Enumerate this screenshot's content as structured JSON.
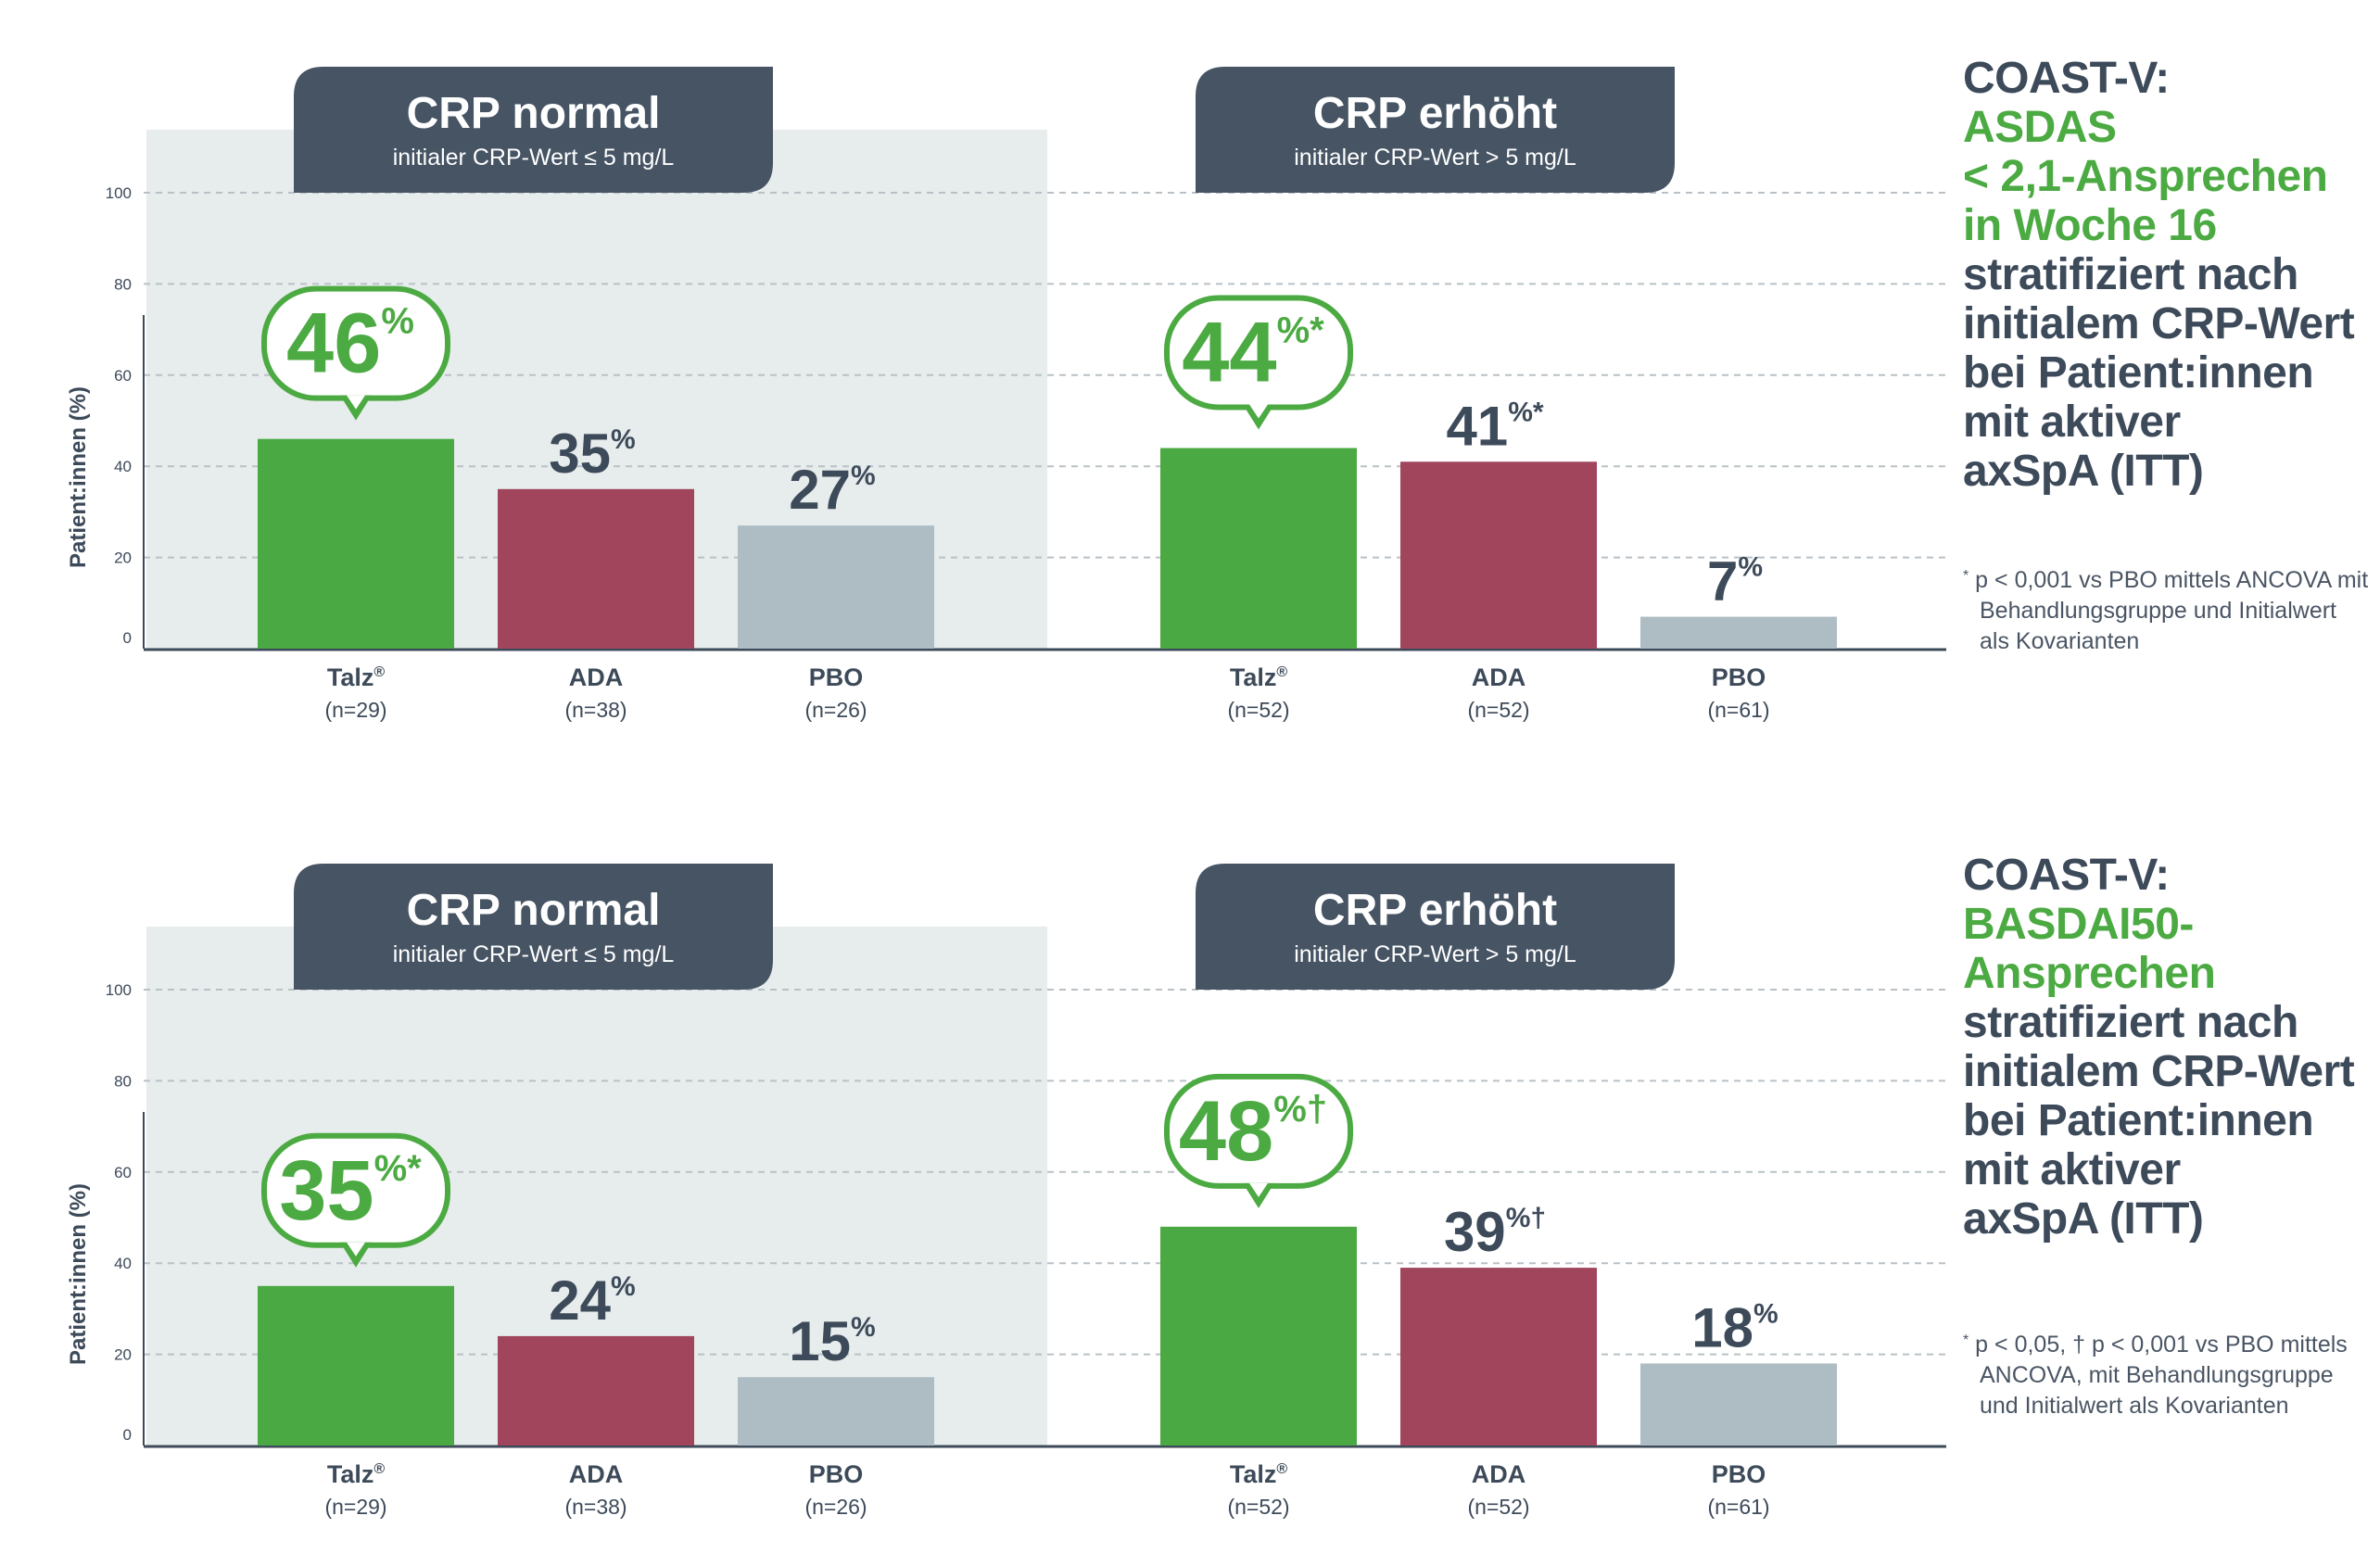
{
  "colors": {
    "talz": "#4aa942",
    "ada": "#a0455c",
    "pbo": "#aebdc4",
    "panel_bg": "#e7ecec",
    "header_bg": "#465464",
    "text_dark": "#3d4a5a",
    "green": "#4caa42"
  },
  "yaxis": {
    "label": "Patient:innen (%)",
    "ticks": [
      "0",
      "20",
      "40",
      "60",
      "80",
      "100"
    ],
    "ylim": [
      0,
      100
    ]
  },
  "panels": {
    "normal": {
      "title": "CRP normal",
      "subtitle": "initialer CRP-Wert ≤ 5 mg/L"
    },
    "high": {
      "title": "CRP erhöht",
      "subtitle": "initialer CRP-Wert > 5 mg/L"
    }
  },
  "groups": {
    "normal": [
      {
        "name": "Talz",
        "reg": "®",
        "n": "(n=29)"
      },
      {
        "name": "ADA",
        "reg": "",
        "n": "(n=38)"
      },
      {
        "name": "PBO",
        "reg": "",
        "n": "(n=26)"
      }
    ],
    "high": [
      {
        "name": "Talz",
        "reg": "®",
        "n": "(n=52)"
      },
      {
        "name": "ADA",
        "reg": "",
        "n": "(n=52)"
      },
      {
        "name": "PBO",
        "reg": "",
        "n": "(n=61)"
      }
    ]
  },
  "chart_data": [
    {
      "type": "bar",
      "title": "COAST-V: ASDAS < 2,1-Ansprechen in Woche 16",
      "ylabel": "Patient:innen (%)",
      "ylim": [
        0,
        100
      ],
      "panels": [
        {
          "panel": "CRP normal",
          "categories": [
            "Talz®",
            "ADA",
            "PBO"
          ],
          "values": [
            46,
            35,
            27
          ],
          "labels": [
            "46",
            "35",
            "27"
          ],
          "marks": [
            "%",
            "%",
            "%"
          ]
        },
        {
          "panel": "CRP erhöht",
          "categories": [
            "Talz®",
            "ADA",
            "PBO"
          ],
          "values": [
            44,
            41,
            7
          ],
          "labels": [
            "44",
            "41",
            "7"
          ],
          "marks": [
            "%*",
            "%*",
            "%"
          ]
        }
      ]
    },
    {
      "type": "bar",
      "title": "COAST-V: BASDAI50-Ansprechen",
      "ylabel": "Patient:innen (%)",
      "ylim": [
        0,
        100
      ],
      "panels": [
        {
          "panel": "CRP normal",
          "categories": [
            "Talz®",
            "ADA",
            "PBO"
          ],
          "values": [
            35,
            24,
            15
          ],
          "labels": [
            "35",
            "24",
            "15"
          ],
          "marks": [
            "%*",
            "%",
            "%"
          ]
        },
        {
          "panel": "CRP erhöht",
          "categories": [
            "Talz®",
            "ADA",
            "PBO"
          ],
          "values": [
            48,
            39,
            18
          ],
          "labels": [
            "48",
            "39",
            "18"
          ],
          "marks": [
            "%†",
            "%†",
            "%"
          ]
        }
      ]
    }
  ],
  "side": [
    {
      "title_lines": [
        "COAST-V:"
      ],
      "green_lines": [
        "ASDAS",
        "< 2,1-Ansprechen",
        "in Woche 16"
      ],
      "body_lines": [
        "stratifiziert nach",
        "initialem CRP-Wert",
        "bei Patient:innen",
        "mit aktiver",
        "axSpA (ITT)"
      ],
      "note_marker": "*",
      "note": "p < 0,001 vs PBO mittels ANCOVA mit Behandlungsgruppe und Initialwert als Kovarianten"
    },
    {
      "title_lines": [
        "COAST-V:"
      ],
      "green_lines": [
        "BASDAI50-",
        "Ansprechen"
      ],
      "body_lines": [
        "stratifiziert nach",
        "initialem CRP-Wert",
        "bei Patient:innen",
        "mit aktiver",
        "axSpA (ITT)"
      ],
      "note_marker": "*",
      "note": "p < 0,05, † p < 0,001 vs PBO mittels ANCOVA, mit Behandlungsgruppe und Initialwert als Kovarianten"
    }
  ]
}
